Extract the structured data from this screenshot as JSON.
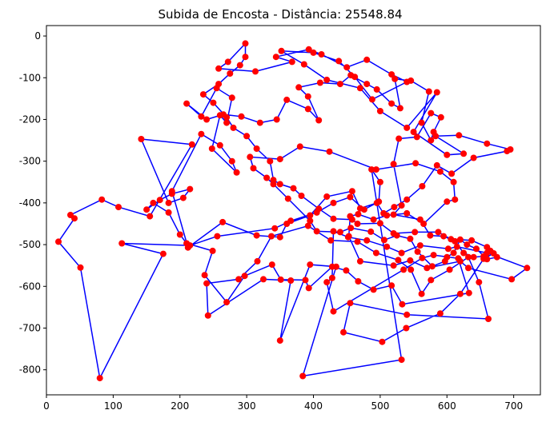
{
  "chart_data": {
    "type": "scatter",
    "title": "Subida de Encosta - Distância: 25548.84",
    "xlabel": "",
    "ylabel": "",
    "xlim": [
      0,
      740
    ],
    "ylim": [
      -860,
      25
    ],
    "x_ticks": [
      0,
      100,
      200,
      300,
      400,
      500,
      600,
      700
    ],
    "y_ticks": [
      0,
      -100,
      -200,
      -300,
      -400,
      -500,
      -600,
      -700,
      -800
    ],
    "point_color": "#ff0000",
    "line_color": "#0000ff",
    "grid": false,
    "route": [
      [
        298,
        -18
      ],
      [
        272,
        -62
      ],
      [
        258,
        -78
      ],
      [
        313,
        -85
      ],
      [
        368,
        -62
      ],
      [
        344,
        -50
      ],
      [
        393,
        -32
      ],
      [
        412,
        -44
      ],
      [
        450,
        -75
      ],
      [
        480,
        -57
      ],
      [
        517,
        -92
      ],
      [
        540,
        -110
      ],
      [
        488,
        -152
      ],
      [
        462,
        -98
      ],
      [
        438,
        -60
      ],
      [
        400,
        -40
      ],
      [
        352,
        -36
      ],
      [
        386,
        -68
      ],
      [
        420,
        -105
      ],
      [
        470,
        -125
      ],
      [
        500,
        -180
      ],
      [
        540,
        -220
      ],
      [
        585,
        -135
      ],
      [
        550,
        -230
      ],
      [
        600,
        -285
      ],
      [
        625,
        -282
      ],
      [
        583,
        -240
      ],
      [
        618,
        -238
      ],
      [
        660,
        -258
      ],
      [
        695,
        -272
      ],
      [
        690,
        -276
      ],
      [
        640,
        -292
      ],
      [
        607,
        -330
      ],
      [
        585,
        -310
      ],
      [
        563,
        -360
      ],
      [
        540,
        -392
      ],
      [
        521,
        -410
      ],
      [
        505,
        -425
      ],
      [
        495,
        -400
      ],
      [
        470,
        -413
      ],
      [
        458,
        -372
      ],
      [
        420,
        -385
      ],
      [
        395,
        -430
      ],
      [
        360,
        -450
      ],
      [
        350,
        -482
      ],
      [
        315,
        -478
      ],
      [
        264,
        -446
      ],
      [
        212,
        -507
      ],
      [
        188,
        -372
      ],
      [
        232,
        -235
      ],
      [
        260,
        -262
      ],
      [
        278,
        -300
      ],
      [
        285,
        -327
      ],
      [
        248,
        -270
      ],
      [
        260,
        -190
      ],
      [
        270,
        -208
      ],
      [
        278,
        -148
      ],
      [
        255,
        -125
      ],
      [
        232,
        -193
      ],
      [
        210,
        -162
      ],
      [
        240,
        -200
      ],
      [
        265,
        -188
      ],
      [
        292,
        -193
      ],
      [
        320,
        -208
      ],
      [
        345,
        -200
      ],
      [
        360,
        -153
      ],
      [
        392,
        -175
      ],
      [
        408,
        -202
      ],
      [
        392,
        -145
      ],
      [
        378,
        -123
      ],
      [
        410,
        -112
      ],
      [
        440,
        -115
      ],
      [
        456,
        -94
      ],
      [
        480,
        -115
      ],
      [
        495,
        -128
      ],
      [
        517,
        -162
      ],
      [
        530,
        -173
      ],
      [
        522,
        -103
      ],
      [
        546,
        -107
      ],
      [
        573,
        -133
      ],
      [
        562,
        -208
      ],
      [
        576,
        -250
      ],
      [
        580,
        -230
      ],
      [
        591,
        -195
      ],
      [
        576,
        -185
      ],
      [
        555,
        -242
      ],
      [
        528,
        -246
      ],
      [
        520,
        -307
      ],
      [
        532,
        -406
      ],
      [
        520,
        -428
      ],
      [
        560,
        -440
      ],
      [
        575,
        -478
      ],
      [
        595,
        -480
      ],
      [
        612,
        -492
      ],
      [
        625,
        -520
      ],
      [
        640,
        -530
      ],
      [
        655,
        -528
      ],
      [
        665,
        -515
      ],
      [
        675,
        -530
      ],
      [
        660,
        -535
      ],
      [
        644,
        -510
      ],
      [
        630,
        -500
      ],
      [
        620,
        -488
      ],
      [
        610,
        -520
      ],
      [
        600,
        -530
      ],
      [
        597,
        -540
      ],
      [
        578,
        -552
      ],
      [
        556,
        -517
      ],
      [
        545,
        -486
      ],
      [
        525,
        -478
      ],
      [
        506,
        -489
      ],
      [
        486,
        -469
      ],
      [
        456,
        -460
      ],
      [
        440,
        -470
      ],
      [
        405,
        -468
      ],
      [
        395,
        -443
      ],
      [
        362,
        -390
      ],
      [
        340,
        -355
      ],
      [
        330,
        -340
      ],
      [
        310,
        -317
      ],
      [
        305,
        -290
      ],
      [
        350,
        -295
      ],
      [
        380,
        -265
      ],
      [
        424,
        -277
      ],
      [
        494,
        -320
      ],
      [
        553,
        -305
      ],
      [
        590,
        -325
      ],
      [
        610,
        -350
      ],
      [
        612,
        -392
      ],
      [
        600,
        -397
      ],
      [
        565,
        -450
      ],
      [
        540,
        -425
      ],
      [
        510,
        -430
      ],
      [
        490,
        -440
      ],
      [
        467,
        -427
      ],
      [
        455,
        -432
      ],
      [
        453,
        -480
      ],
      [
        470,
        -540
      ],
      [
        520,
        -550
      ],
      [
        545,
        -538
      ],
      [
        570,
        -556
      ],
      [
        620,
        -540
      ],
      [
        632,
        -556
      ],
      [
        697,
        -583
      ],
      [
        720,
        -556
      ],
      [
        660,
        -520
      ],
      [
        615,
        -505
      ],
      [
        602,
        -510
      ],
      [
        560,
        -502
      ],
      [
        532,
        -520
      ],
      [
        510,
        -505
      ],
      [
        480,
        -490
      ],
      [
        452,
        -482
      ],
      [
        430,
        -468
      ],
      [
        428,
        -580
      ],
      [
        420,
        -590
      ],
      [
        430,
        -660
      ],
      [
        535,
        -560
      ],
      [
        563,
        -532
      ],
      [
        580,
        -525
      ],
      [
        617,
        -533
      ],
      [
        633,
        -616
      ],
      [
        533,
        -643
      ],
      [
        517,
        -598
      ],
      [
        490,
        -608
      ],
      [
        467,
        -588
      ],
      [
        449,
        -562
      ],
      [
        428,
        -553
      ],
      [
        393,
        -604
      ],
      [
        388,
        -585
      ],
      [
        351,
        -584
      ],
      [
        338,
        -548
      ],
      [
        297,
        -575
      ],
      [
        270,
        -638
      ],
      [
        237,
        -573
      ],
      [
        249,
        -515
      ],
      [
        210,
        -497
      ],
      [
        200,
        -476
      ],
      [
        183,
        -423
      ],
      [
        160,
        -400
      ],
      [
        150,
        -416
      ],
      [
        170,
        -393
      ],
      [
        188,
        -378
      ],
      [
        215,
        -367
      ],
      [
        205,
        -388
      ],
      [
        183,
        -400
      ],
      [
        142,
        -247
      ],
      [
        218,
        -260
      ],
      [
        155,
        -432
      ],
      [
        108,
        -410
      ],
      [
        83,
        -392
      ],
      [
        36,
        -429
      ],
      [
        42,
        -437
      ],
      [
        18,
        -493
      ],
      [
        51,
        -555
      ],
      [
        80,
        -820
      ],
      [
        175,
        -522
      ],
      [
        113,
        -497
      ],
      [
        215,
        -502
      ],
      [
        256,
        -480
      ],
      [
        342,
        -461
      ],
      [
        366,
        -443
      ],
      [
        405,
        -423
      ],
      [
        430,
        -400
      ],
      [
        455,
        -386
      ],
      [
        476,
        -416
      ],
      [
        498,
        -397
      ],
      [
        500,
        -350
      ],
      [
        487,
        -320
      ],
      [
        532,
        -776
      ],
      [
        384,
        -815
      ],
      [
        434,
        -553
      ],
      [
        395,
        -548
      ],
      [
        350,
        -730
      ],
      [
        366,
        -586
      ],
      [
        325,
        -583
      ],
      [
        242,
        -670
      ],
      [
        240,
        -593
      ],
      [
        288,
        -583
      ],
      [
        316,
        -540
      ],
      [
        337,
        -480
      ],
      [
        392,
        -455
      ],
      [
        426,
        -490
      ],
      [
        466,
        -493
      ],
      [
        494,
        -520
      ],
      [
        527,
        -537
      ],
      [
        546,
        -560
      ],
      [
        562,
        -618
      ],
      [
        576,
        -585
      ],
      [
        604,
        -560
      ],
      [
        632,
        -530
      ],
      [
        648,
        -590
      ],
      [
        662,
        -678
      ],
      [
        540,
        -668
      ],
      [
        455,
        -640
      ],
      [
        445,
        -710
      ],
      [
        503,
        -733
      ],
      [
        539,
        -700
      ],
      [
        590,
        -665
      ],
      [
        620,
        -618
      ],
      [
        655,
        -534
      ],
      [
        670,
        -521
      ],
      [
        660,
        -506
      ],
      [
        637,
        -490
      ],
      [
        606,
        -487
      ],
      [
        587,
        -470
      ],
      [
        552,
        -470
      ],
      [
        520,
        -473
      ],
      [
        500,
        -449
      ],
      [
        466,
        -450
      ],
      [
        458,
        -440
      ],
      [
        430,
        -438
      ],
      [
        408,
        -414
      ],
      [
        382,
        -383
      ],
      [
        370,
        -365
      ],
      [
        350,
        -355
      ],
      [
        340,
        -345
      ],
      [
        335,
        -300
      ],
      [
        315,
        -270
      ],
      [
        300,
        -240
      ],
      [
        280,
        -220
      ],
      [
        270,
        -195
      ],
      [
        250,
        -160
      ],
      [
        235,
        -140
      ],
      [
        258,
        -115
      ],
      [
        275,
        -90
      ],
      [
        290,
        -70
      ],
      [
        298,
        -50
      ],
      [
        298,
        -18
      ]
    ]
  }
}
